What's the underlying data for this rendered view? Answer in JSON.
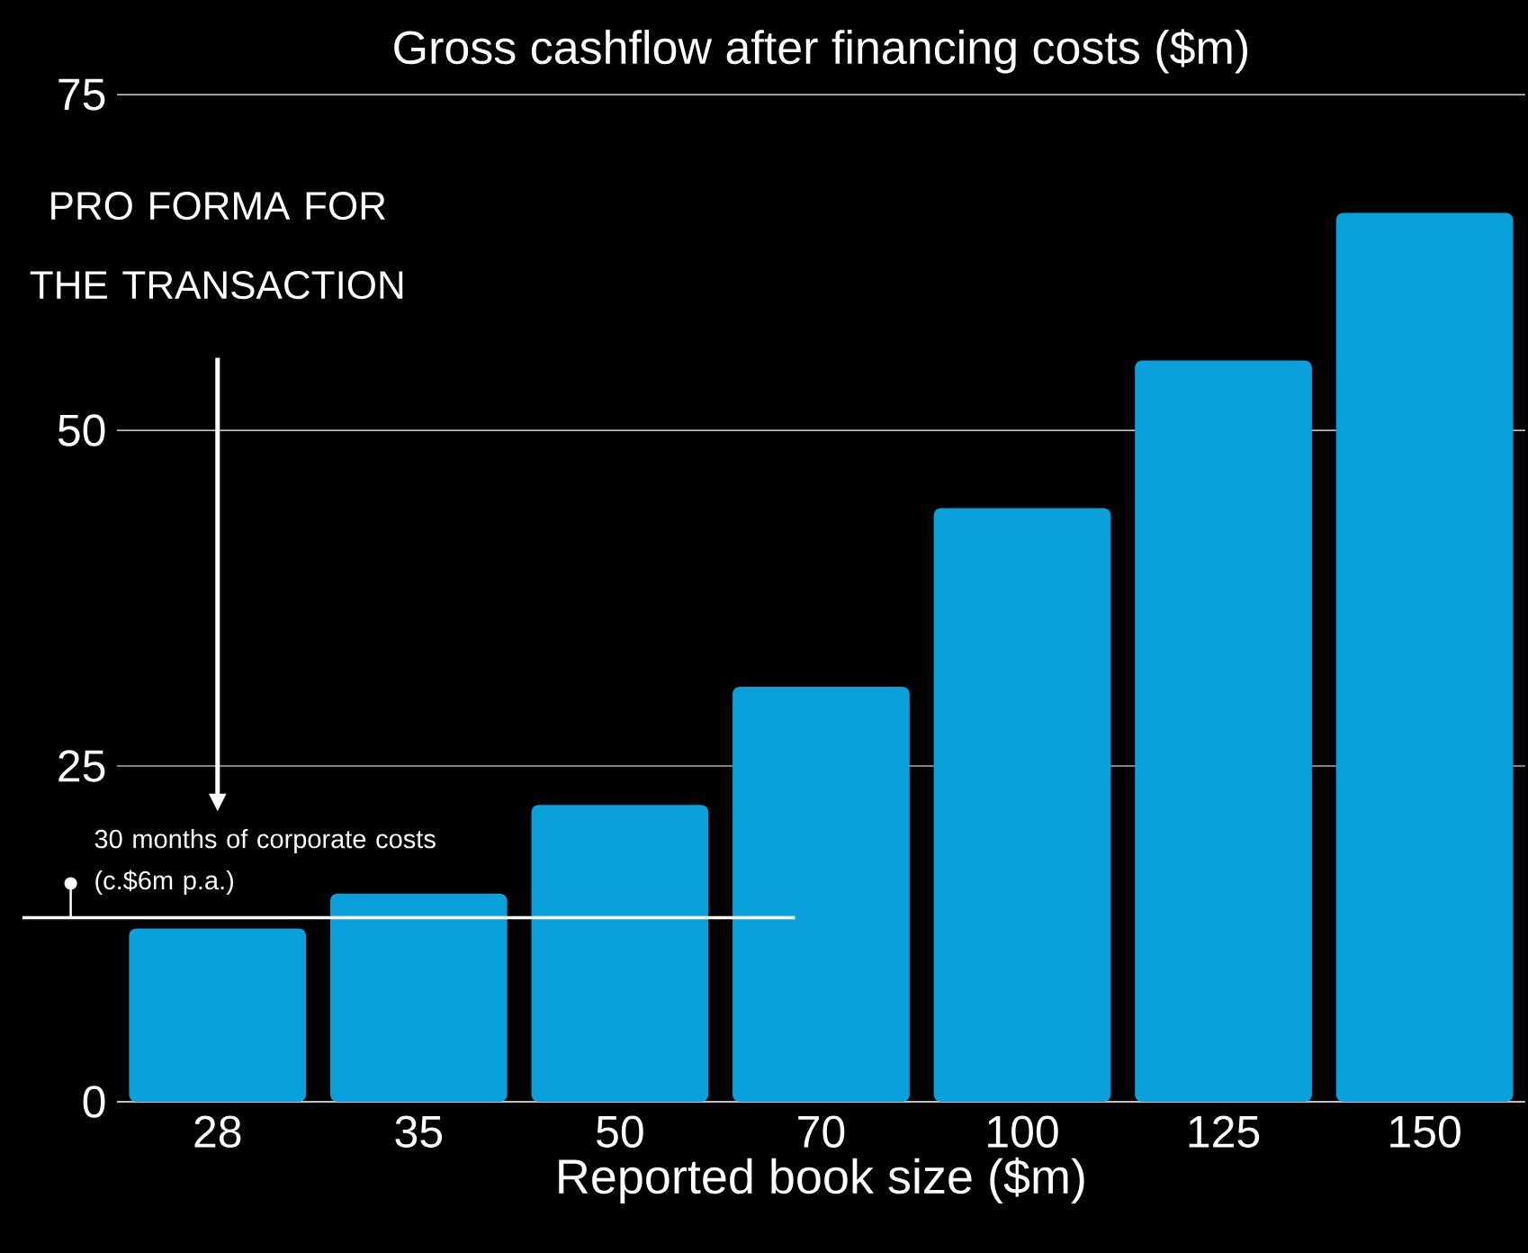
{
  "chart_data": {
    "type": "bar",
    "title": "Gross cashflow after financing costs ($m)",
    "xlabel": "Reported book size ($m)",
    "categories": [
      "28",
      "35",
      "50",
      "70",
      "100",
      "125",
      "150"
    ],
    "values": [
      12.9,
      15.5,
      22.1,
      30.9,
      44.2,
      55.2,
      66.2
    ],
    "color": "#0aa0dc",
    "ylim": [
      0,
      75
    ],
    "yticks": [
      0,
      25,
      50,
      75
    ],
    "grid": "y",
    "ref_lines": [
      {
        "axis": "y",
        "value": 13.7,
        "label": "30 months of corporate costs (c.$6m p.a.)",
        "color": "#ffffff"
      }
    ],
    "annotations": [
      "PRO FORMA FOR THE TRANSACTION"
    ]
  }
}
